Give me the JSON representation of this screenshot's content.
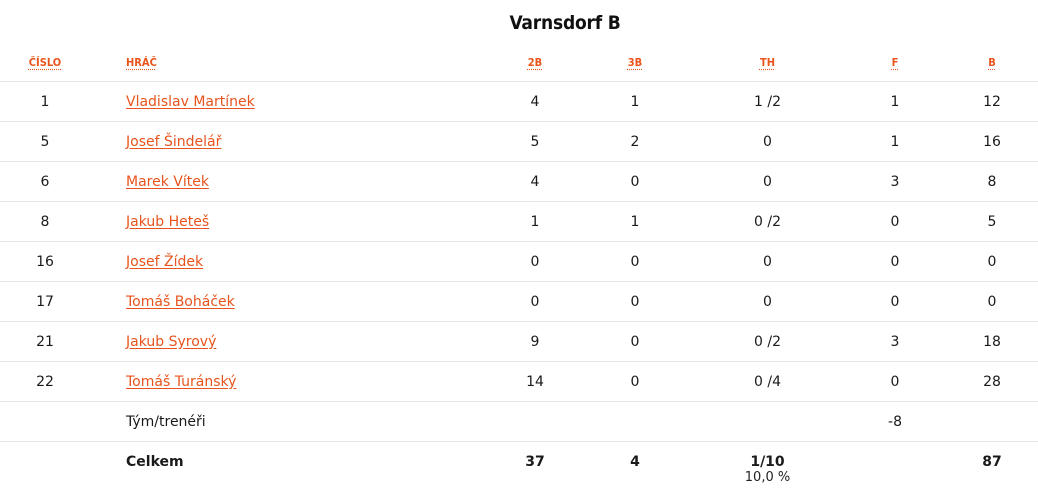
{
  "team_name": "Varnsdorf B",
  "headers": {
    "number": "ČÍSLO",
    "player": "HRÁČ",
    "two_pt": "2B",
    "three_pt": "3B",
    "free_throws": "TH",
    "fouls": "F",
    "points": "B"
  },
  "players": [
    {
      "number": "1",
      "name": "Vladislav Martínek",
      "two_pt": "4",
      "three_pt": "1",
      "free_throws": "1 /2",
      "fouls": "1",
      "points": "12"
    },
    {
      "number": "5",
      "name": "Josef Šindelář",
      "two_pt": "5",
      "three_pt": "2",
      "free_throws": "0",
      "fouls": "1",
      "points": "16"
    },
    {
      "number": "6",
      "name": "Marek Vítek",
      "two_pt": "4",
      "three_pt": "0",
      "free_throws": "0",
      "fouls": "3",
      "points": "8"
    },
    {
      "number": "8",
      "name": "Jakub Heteš",
      "two_pt": "1",
      "three_pt": "1",
      "free_throws": "0 /2",
      "fouls": "0",
      "points": "5"
    },
    {
      "number": "16",
      "name": "Josef Žídek",
      "two_pt": "0",
      "three_pt": "0",
      "free_throws": "0",
      "fouls": "0",
      "points": "0"
    },
    {
      "number": "17",
      "name": "Tomáš Boháček",
      "two_pt": "0",
      "three_pt": "0",
      "free_throws": "0",
      "fouls": "0",
      "points": "0"
    },
    {
      "number": "21",
      "name": "Jakub Syrový",
      "two_pt": "9",
      "three_pt": "0",
      "free_throws": "0 /2",
      "fouls": "3",
      "points": "18"
    },
    {
      "number": "22",
      "name": "Tomáš Turánský",
      "two_pt": "14",
      "three_pt": "0",
      "free_throws": "0 /4",
      "fouls": "0",
      "points": "28"
    }
  ],
  "team_row": {
    "label": "Tým/trenéři",
    "fouls": "-8"
  },
  "total_row": {
    "label": "Celkem",
    "two_pt": "37",
    "three_pt": "4",
    "free_throws": "1/10",
    "free_throw_pct": "10,0 %",
    "points": "87"
  },
  "colors": {
    "accent": "#e8541c",
    "divider": "#e3e3e3"
  }
}
